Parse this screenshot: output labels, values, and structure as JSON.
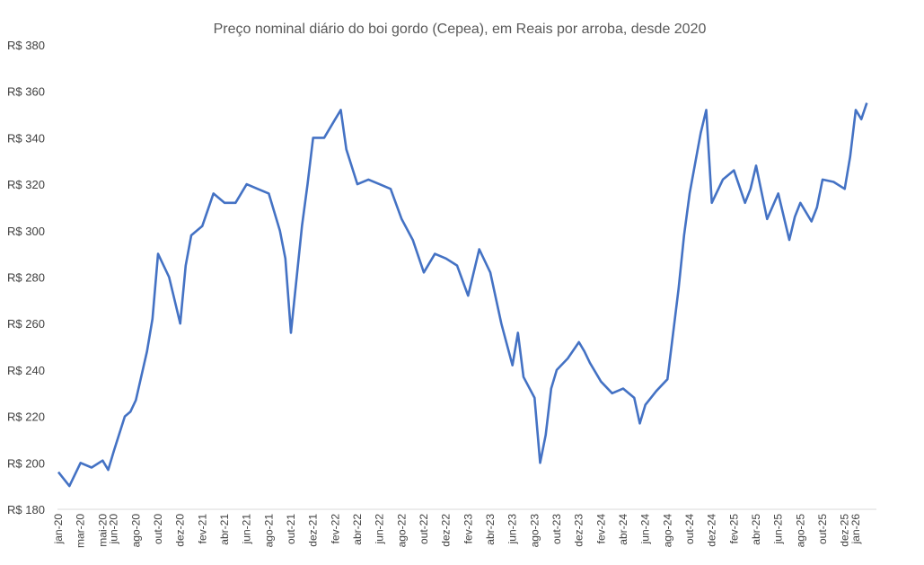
{
  "chart_data": {
    "type": "line",
    "title": "Preço nominal diário do boi gordo (Cepea), em Reais por arroba, desde 2020",
    "xlabel": "",
    "ylabel": "",
    "ylim": [
      180,
      380
    ],
    "yticks": [
      180,
      200,
      220,
      240,
      260,
      280,
      300,
      320,
      340,
      360,
      380
    ],
    "ytick_prefix": "R$ ",
    "xticks": [
      "jan-20",
      "mar-20",
      "mai-20",
      "jun-20",
      "ago-20",
      "out-20",
      "dez-20",
      "fev-21",
      "abr-21",
      "jun-21",
      "ago-21",
      "out-21",
      "dez-21",
      "fev-22",
      "abr-22",
      "jun-22",
      "ago-22",
      "out-22",
      "dez-22",
      "fev-23",
      "abr-23",
      "jun-23",
      "ago-23",
      "out-23",
      "dez-23",
      "fev-24",
      "abr-24",
      "jun-24",
      "ago-24",
      "out-24",
      "dez-24",
      "fev-25",
      "abr-25",
      "jun-25",
      "ago-25",
      "out-25",
      "dez-25",
      "jan-26"
    ],
    "grid": false,
    "legend": "none",
    "series": [
      {
        "color": "#4472C4",
        "points": [
          [
            "jan-20",
            196
          ],
          [
            "fev-20",
            190
          ],
          [
            "mar-20",
            200
          ],
          [
            "abr-20",
            198
          ],
          [
            "mai-20",
            201
          ],
          [
            "mai-20",
            197
          ],
          [
            "jun-20",
            205
          ],
          [
            "jul-20",
            220
          ],
          [
            "jul-20",
            222
          ],
          [
            "ago-20",
            227
          ],
          [
            "set-20",
            248
          ],
          [
            "set-20",
            262
          ],
          [
            "out-20",
            290
          ],
          [
            "nov-20",
            280
          ],
          [
            "dez-20",
            260
          ],
          [
            "dez-20",
            285
          ],
          [
            "jan-21",
            298
          ],
          [
            "fev-21",
            302
          ],
          [
            "mar-21",
            316
          ],
          [
            "abr-21",
            312
          ],
          [
            "mai-21",
            312
          ],
          [
            "jun-21",
            320
          ],
          [
            "jul-21",
            318
          ],
          [
            "ago-21",
            316
          ],
          [
            "set-21",
            300
          ],
          [
            "set-21",
            288
          ],
          [
            "out-21",
            256
          ],
          [
            "nov-21",
            302
          ],
          [
            "nov-21",
            320
          ],
          [
            "dez-21",
            340
          ],
          [
            "jan-22",
            340
          ],
          [
            "fev-22",
            348
          ],
          [
            "fev-22",
            352
          ],
          [
            "mar-22",
            335
          ],
          [
            "abr-22",
            320
          ],
          [
            "mai-22",
            322
          ],
          [
            "jun-22",
            320
          ],
          [
            "jul-22",
            318
          ],
          [
            "ago-22",
            305
          ],
          [
            "set-22",
            296
          ],
          [
            "out-22",
            282
          ],
          [
            "nov-22",
            290
          ],
          [
            "dez-22",
            288
          ],
          [
            "jan-23",
            285
          ],
          [
            "fev-23",
            272
          ],
          [
            "mar-23",
            292
          ],
          [
            "abr-23",
            282
          ],
          [
            "mai-23",
            260
          ],
          [
            "jun-23",
            242
          ],
          [
            "jun-23",
            256
          ],
          [
            "jul-23",
            237
          ],
          [
            "ago-23",
            228
          ],
          [
            "ago-23",
            200
          ],
          [
            "set-23",
            212
          ],
          [
            "set-23",
            232
          ],
          [
            "out-23",
            240
          ],
          [
            "nov-23",
            245
          ],
          [
            "dez-23",
            252
          ],
          [
            "dez-23",
            248
          ],
          [
            "jan-24",
            243
          ],
          [
            "fev-24",
            235
          ],
          [
            "mar-24",
            230
          ],
          [
            "abr-24",
            232
          ],
          [
            "mai-24",
            228
          ],
          [
            "mai-24",
            217
          ],
          [
            "jun-24",
            225
          ],
          [
            "jul-24",
            231
          ],
          [
            "ago-24",
            236
          ],
          [
            "set-24",
            275
          ],
          [
            "set-24",
            298
          ],
          [
            "out-24",
            316
          ],
          [
            "nov-24",
            342
          ],
          [
            "nov-24",
            352
          ],
          [
            "dez-24",
            312
          ],
          [
            "jan-25",
            322
          ],
          [
            "fev-25",
            326
          ],
          [
            "mar-25",
            312
          ],
          [
            "mar-25",
            318
          ],
          [
            "abr-25",
            328
          ],
          [
            "mai-25",
            305
          ],
          [
            "jun-25",
            316
          ],
          [
            "jul-25",
            296
          ],
          [
            "jul-25",
            306
          ],
          [
            "ago-25",
            312
          ],
          [
            "set-25",
            304
          ],
          [
            "set-25",
            310
          ],
          [
            "out-25",
            322
          ],
          [
            "nov-25",
            321
          ],
          [
            "dez-25",
            318
          ],
          [
            "dez-25",
            332
          ],
          [
            "jan-26",
            352
          ],
          [
            "jan-26",
            348
          ],
          [
            "fev-26",
            355
          ]
        ]
      }
    ]
  }
}
